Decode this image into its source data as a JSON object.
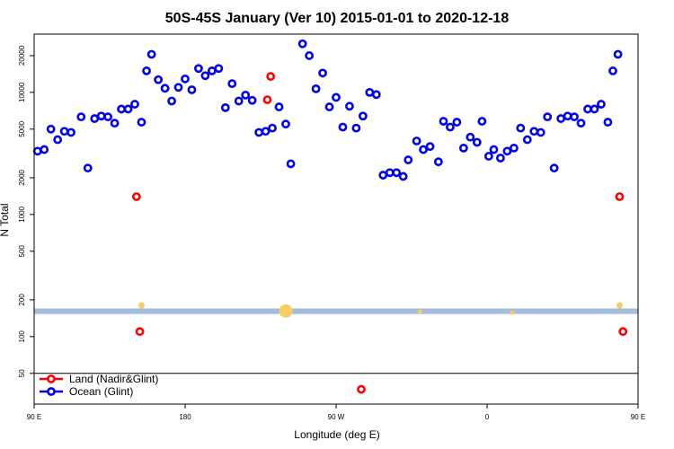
{
  "chart_data": {
    "type": "scatter",
    "title": "50S-45S January (Ver 10)   2015-01-01 to 2020-12-18",
    "xlabel": "Longitude (deg E)",
    "ylabel": "N Total",
    "x_axis": {
      "min": 90,
      "max": 450,
      "ticks": [
        {
          "value": 90,
          "label": "90 E"
        },
        {
          "value": 180,
          "label": "180"
        },
        {
          "value": 270,
          "label": "90 W"
        },
        {
          "value": 360,
          "label": "0"
        },
        {
          "value": 450,
          "label": "90 E"
        },
        {
          "value": 540,
          "label": "180"
        }
      ]
    },
    "y_axis": {
      "scale": "log",
      "ylim": [
        28,
        30000
      ],
      "ticks": [
        {
          "value": 50,
          "label": "50"
        },
        {
          "value": 100,
          "label": "100"
        },
        {
          "value": 200,
          "label": "200"
        },
        {
          "value": 500,
          "label": "500"
        },
        {
          "value": 1000,
          "label": "1000"
        },
        {
          "value": 2000,
          "label": "2000"
        },
        {
          "value": 5000,
          "label": "5000"
        },
        {
          "value": 10000,
          "label": "10000"
        },
        {
          "value": 20000,
          "label": "20000"
        }
      ]
    },
    "series": [
      {
        "name": "Land (Nadir&Glint)",
        "color": "#ff0000",
        "points": [
          [
            151,
            1400
          ],
          [
            153,
            110
          ],
          [
            229,
            8700
          ],
          [
            231,
            13500
          ],
          [
            285,
            37
          ],
          [
            439,
            1400
          ],
          [
            441,
            110
          ]
        ]
      },
      {
        "name": "Ocean (Glint)",
        "color": "#0000e6",
        "points": [
          [
            92,
            3300
          ],
          [
            96,
            3400
          ],
          [
            100,
            5000
          ],
          [
            104,
            4100
          ],
          [
            108,
            4800
          ],
          [
            112,
            4700
          ],
          [
            118,
            6300
          ],
          [
            122,
            2400
          ],
          [
            126,
            6100
          ],
          [
            130,
            6400
          ],
          [
            134,
            6300
          ],
          [
            138,
            5600
          ],
          [
            142,
            7300
          ],
          [
            146,
            7300
          ],
          [
            150,
            8000
          ],
          [
            154,
            5700
          ],
          [
            157,
            15000
          ],
          [
            160,
            20500
          ],
          [
            164,
            12700
          ],
          [
            168,
            10800
          ],
          [
            172,
            8500
          ],
          [
            176,
            11000
          ],
          [
            180,
            12900
          ],
          [
            184,
            10500
          ],
          [
            188,
            15700
          ],
          [
            192,
            13700
          ],
          [
            196,
            15000
          ],
          [
            200,
            15700
          ],
          [
            204,
            7500
          ],
          [
            208,
            11800
          ],
          [
            212,
            8500
          ],
          [
            216,
            9500
          ],
          [
            220,
            8600
          ],
          [
            224,
            4700
          ],
          [
            228,
            4800
          ],
          [
            232,
            5100
          ],
          [
            236,
            7600
          ],
          [
            240,
            5500
          ],
          [
            243,
            2600
          ],
          [
            250,
            25000
          ],
          [
            254,
            20000
          ],
          [
            258,
            10700
          ],
          [
            262,
            14400
          ],
          [
            266,
            7600
          ],
          [
            270,
            9100
          ],
          [
            274,
            5200
          ],
          [
            278,
            7700
          ],
          [
            282,
            5100
          ],
          [
            286,
            6400
          ],
          [
            290,
            10000
          ],
          [
            294,
            9600
          ],
          [
            298,
            2100
          ],
          [
            302,
            2200
          ],
          [
            306,
            2200
          ],
          [
            310,
            2050
          ],
          [
            313,
            2800
          ],
          [
            318,
            4000
          ],
          [
            322,
            3400
          ],
          [
            326,
            3600
          ],
          [
            331,
            2700
          ],
          [
            334,
            5800
          ],
          [
            338,
            5200
          ],
          [
            342,
            5700
          ],
          [
            346,
            3500
          ],
          [
            350,
            4300
          ],
          [
            354,
            3900
          ],
          [
            357,
            5800
          ],
          [
            361,
            3000
          ],
          [
            364,
            3400
          ],
          [
            368,
            2900
          ],
          [
            372,
            3300
          ],
          [
            376,
            3500
          ],
          [
            380,
            5100
          ],
          [
            384,
            4100
          ],
          [
            388,
            4800
          ],
          [
            392,
            4700
          ],
          [
            396,
            6300
          ],
          [
            400,
            2400
          ],
          [
            404,
            6100
          ],
          [
            408,
            6400
          ],
          [
            412,
            6300
          ],
          [
            416,
            5600
          ],
          [
            420,
            7300
          ],
          [
            424,
            7300
          ],
          [
            428,
            8000
          ],
          [
            432,
            5700
          ],
          [
            435,
            15000
          ],
          [
            438,
            20500
          ]
        ]
      }
    ],
    "bands": [
      {
        "y_from": 153,
        "y_to": 170,
        "color": "#a5bcdb"
      }
    ],
    "overlay_markers": [
      {
        "x": 154,
        "y": 180,
        "color": "#f5cf66",
        "size": 1
      },
      {
        "x": 240,
        "y": 162,
        "color": "#f5cf66",
        "size": 3
      },
      {
        "x": 320,
        "y": 160,
        "color": "#f5cf66",
        "size": 0.5
      },
      {
        "x": 375,
        "y": 157,
        "color": "#f5cf66",
        "size": 0.5
      },
      {
        "x": 439,
        "y": 180,
        "color": "#f5cf66",
        "size": 1
      }
    ],
    "hline": {
      "y": 50,
      "color": "#000000"
    },
    "legend": {
      "position": "bottom-left",
      "entries": [
        {
          "label": "Land (Nadir&Glint)",
          "color": "#ff0000"
        },
        {
          "label": "Ocean (Glint)",
          "color": "#0000e6"
        }
      ]
    },
    "grid": false
  }
}
